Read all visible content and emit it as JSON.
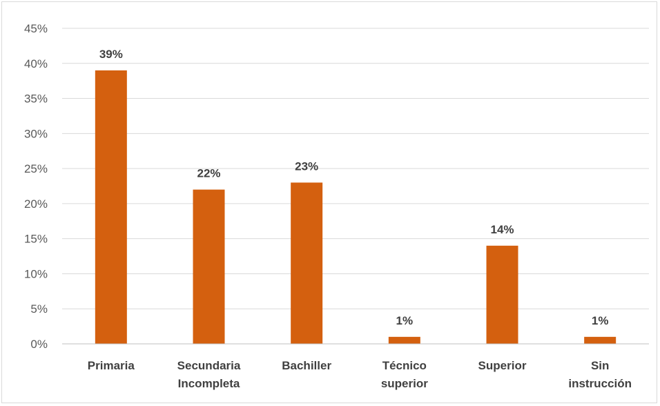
{
  "chart_data": {
    "type": "bar",
    "title": "",
    "xlabel": "",
    "ylabel": "",
    "categories": [
      [
        "Primaria"
      ],
      [
        "Secundaria",
        "Incompleta"
      ],
      [
        "Bachiller"
      ],
      [
        "Técnico",
        "superior"
      ],
      [
        "Superior"
      ],
      [
        "Sin",
        "instrucción"
      ]
    ],
    "values": [
      39,
      22,
      23,
      1,
      14,
      1
    ],
    "data_labels": [
      "39%",
      "22%",
      "23%",
      "1%",
      "14%",
      "1%"
    ],
    "y_ticks": [
      "0%",
      "5%",
      "10%",
      "15%",
      "20%",
      "25%",
      "30%",
      "35%",
      "40%",
      "45%"
    ],
    "ylim": [
      0,
      45
    ],
    "grid": true,
    "legend": "none",
    "bar_color": "#D4600F"
  }
}
